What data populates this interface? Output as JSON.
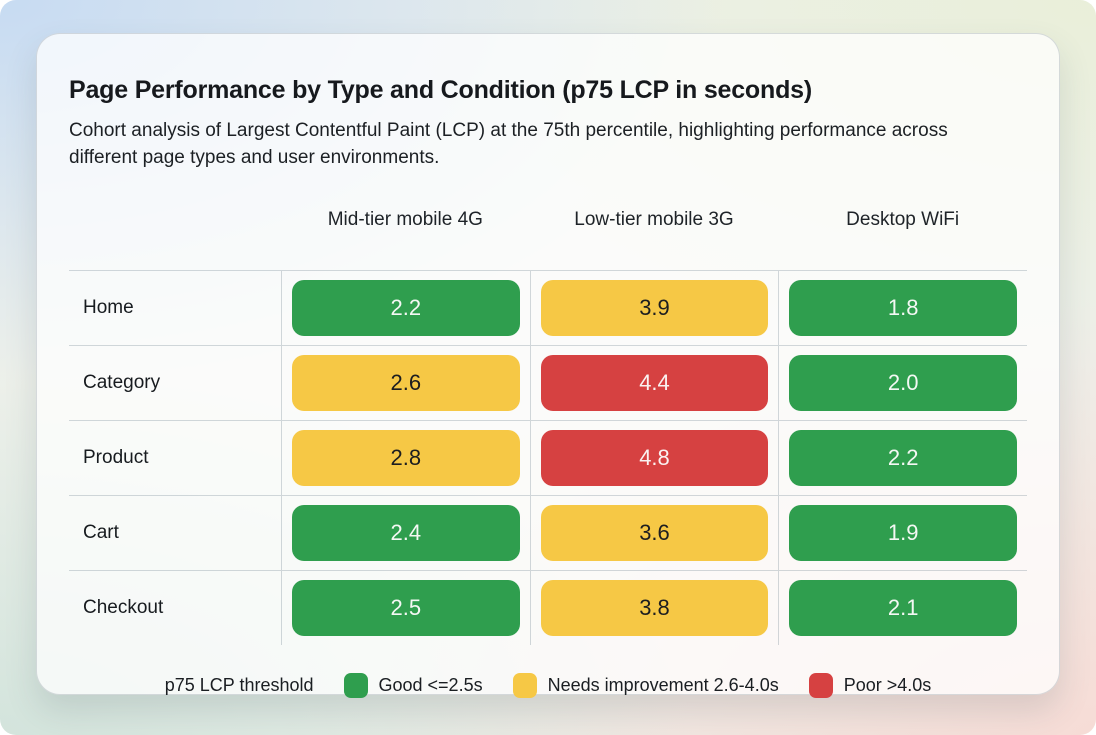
{
  "card": {
    "title": "Page Performance by Type and Condition (p75 LCP in seconds)",
    "subtitle": "Cohort analysis of Largest Contentful Paint (LCP) at the 75th percentile, highlighting performance across different page types and user environments."
  },
  "table": {
    "columns": [
      "Mid-tier mobile 4G",
      "Low-tier mobile 3G",
      "Desktop WiFi"
    ],
    "rows": [
      {
        "label": "Home",
        "cells": [
          {
            "value": "2.2",
            "status": "good"
          },
          {
            "value": "3.9",
            "status": "warn"
          },
          {
            "value": "1.8",
            "status": "good"
          }
        ]
      },
      {
        "label": "Category",
        "cells": [
          {
            "value": "2.6",
            "status": "warn"
          },
          {
            "value": "4.4",
            "status": "poor"
          },
          {
            "value": "2.0",
            "status": "good"
          }
        ]
      },
      {
        "label": "Product",
        "cells": [
          {
            "value": "2.8",
            "status": "warn"
          },
          {
            "value": "4.8",
            "status": "poor"
          },
          {
            "value": "2.2",
            "status": "good"
          }
        ]
      },
      {
        "label": "Cart",
        "cells": [
          {
            "value": "2.4",
            "status": "good"
          },
          {
            "value": "3.6",
            "status": "warn"
          },
          {
            "value": "1.9",
            "status": "good"
          }
        ]
      },
      {
        "label": "Checkout",
        "cells": [
          {
            "value": "2.5",
            "status": "good"
          },
          {
            "value": "3.8",
            "status": "warn"
          },
          {
            "value": "2.1",
            "status": "good"
          }
        ]
      }
    ]
  },
  "legend": {
    "label": "p75 LCP threshold",
    "items": [
      {
        "label": "Good <=2.5s",
        "status": "good",
        "color": "#2f9e4e"
      },
      {
        "label": "Needs improvement 2.6-4.0s",
        "status": "warn",
        "color": "#f6c845"
      },
      {
        "label": "Poor >4.0s",
        "status": "poor",
        "color": "#d64141"
      }
    ]
  },
  "colors": {
    "good": "#2f9e4e",
    "needs_improvement": "#f6c845",
    "poor": "#d64141",
    "cell_text_on_dark": "#f4f8f4",
    "cell_text_on_yellow": "#1d1e20"
  },
  "chart_data": {
    "type": "heatmap",
    "title": "Page Performance by Type and Condition (p75 LCP in seconds)",
    "subtitle": "Cohort analysis of Largest Contentful Paint (LCP) at the 75th percentile, highlighting performance across different page types and user environments.",
    "rows": [
      "Home",
      "Category",
      "Product",
      "Cart",
      "Checkout"
    ],
    "columns": [
      "Mid-tier mobile 4G",
      "Low-tier mobile 3G",
      "Desktop WiFi"
    ],
    "values": [
      [
        2.2,
        3.9,
        1.8
      ],
      [
        2.6,
        4.4,
        2.0
      ],
      [
        2.8,
        4.8,
        2.2
      ],
      [
        2.4,
        3.6,
        1.9
      ],
      [
        2.5,
        3.8,
        2.1
      ]
    ],
    "unit": "seconds",
    "metric": "p75 LCP",
    "thresholds": {
      "good": "<=2.5s",
      "needs_improvement": "2.6-4.0s",
      "poor": ">4.0s"
    },
    "legend_position": "bottom"
  }
}
